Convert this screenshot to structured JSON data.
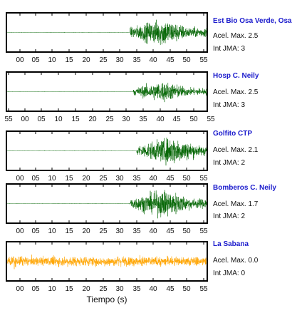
{
  "chart_data": {
    "type": "line",
    "xlabel": "Tiempo (s)",
    "info_labels": {
      "acel": "Acel. Max.",
      "jma": "Int JMA:"
    },
    "panels": [
      {
        "station": "Est Bio Osa Verde, Osa",
        "acel_max": "2.5",
        "int_jma": "3",
        "color": "#006400",
        "onset_s": 37,
        "peak_s": 47,
        "amplitude": 1.0,
        "tick_labels": [
          "00",
          "05",
          "10",
          "15",
          "20",
          "25",
          "30",
          "35",
          "40",
          "45",
          "50",
          "55"
        ]
      },
      {
        "station": "Hosp C. Neily",
        "acel_max": "2.5",
        "int_jma": "3",
        "color": "#006400",
        "onset_s": 38,
        "peak_s": 47,
        "amplitude": 0.75,
        "tick_labels": [
          "55",
          "00",
          "05",
          "10",
          "15",
          "20",
          "25",
          "30",
          "35",
          "40",
          "45",
          "50",
          "55"
        ]
      },
      {
        "station": "Golfito CTP",
        "acel_max": "2.1",
        "int_jma": "2",
        "color": "#006400",
        "onset_s": 39,
        "peak_s": 50,
        "amplitude": 1.0,
        "tick_labels": [
          "00",
          "05",
          "10",
          "15",
          "20",
          "25",
          "30",
          "35",
          "40",
          "45",
          "50",
          "55"
        ]
      },
      {
        "station": "Bomberos C. Neily",
        "acel_max": "1.7",
        "int_jma": "2",
        "color": "#006400",
        "onset_s": 37,
        "peak_s": 48,
        "amplitude": 1.0,
        "tick_labels": [
          "00",
          "05",
          "10",
          "15",
          "20",
          "25",
          "30",
          "35",
          "40",
          "45",
          "50",
          "55"
        ]
      },
      {
        "station": "La Sabana",
        "acel_max": "0.0",
        "int_jma": "0",
        "color": "#ffa500",
        "onset_s": null,
        "peak_s": null,
        "amplitude": 0.5,
        "tick_labels": [
          "00",
          "05",
          "10",
          "15",
          "20",
          "25",
          "30",
          "35",
          "40",
          "45",
          "50",
          "55"
        ]
      }
    ]
  }
}
